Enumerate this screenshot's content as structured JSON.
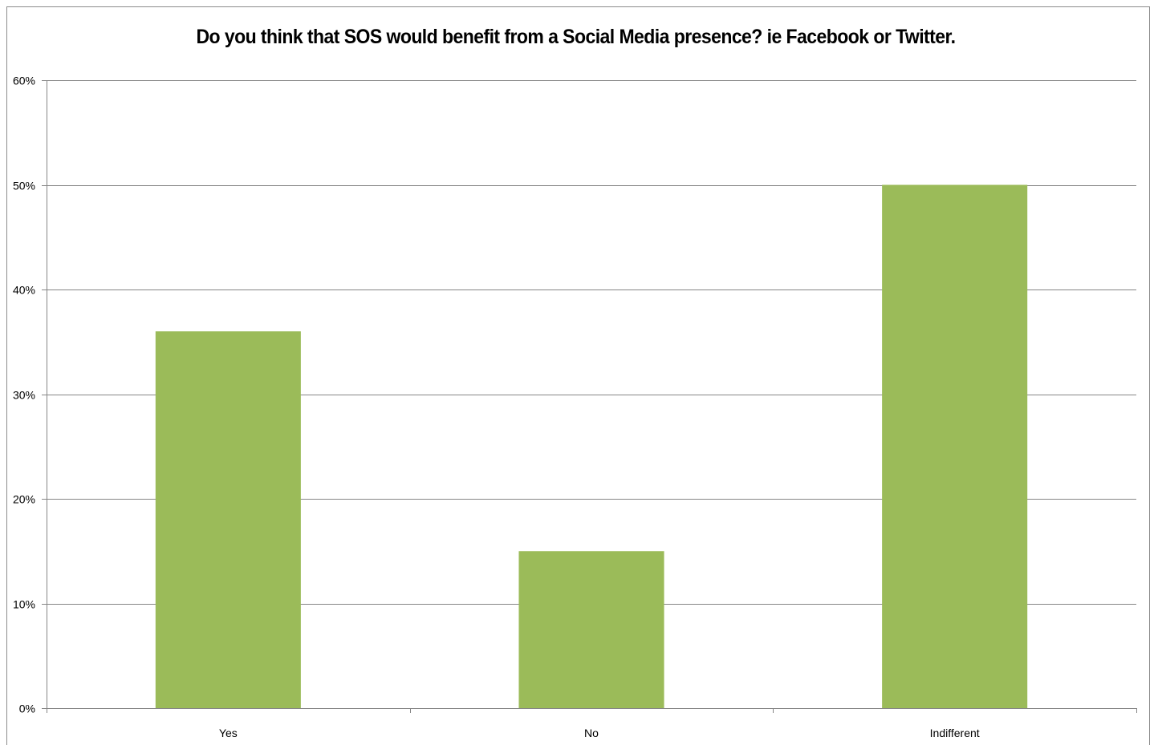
{
  "chart_data": {
    "type": "bar",
    "title": "Do you think that SOS would benefit from a Social Media presence? ie Facebook or Twitter.",
    "categories": [
      "Yes",
      "No",
      "Indifferent"
    ],
    "values": [
      36,
      15,
      50
    ],
    "ylim": [
      0,
      60
    ],
    "yticks": [
      0,
      10,
      20,
      30,
      40,
      50,
      60
    ],
    "ytick_labels": [
      "0%",
      "10%",
      "20%",
      "30%",
      "40%",
      "50%",
      "60%"
    ],
    "xlabel": "",
    "ylabel": "",
    "grid": true,
    "legend": "none",
    "colors": {
      "bar": "#9bbb59",
      "grid": "#868686",
      "axis": "#868686"
    }
  }
}
